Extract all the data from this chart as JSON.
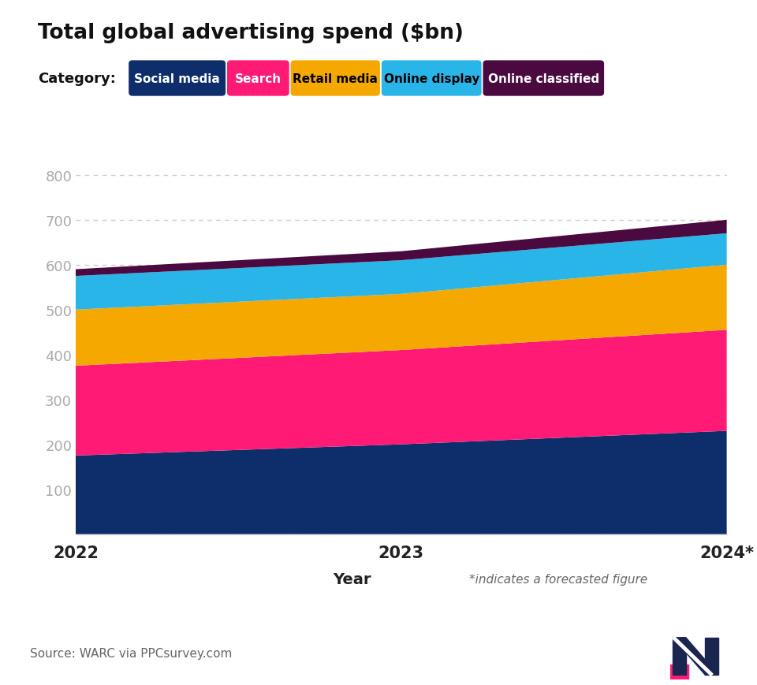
{
  "title": "Total global advertising spend ($bn)",
  "xlabel": "Year",
  "footnote": "*indicates a forecasted figure",
  "source": "Source: WARC via PPCsurvey.com",
  "years": [
    2022,
    2023,
    2024
  ],
  "xtick_labels": [
    "2022",
    "2023",
    "2024*"
  ],
  "yticks": [
    0,
    100,
    200,
    300,
    400,
    500,
    600,
    700,
    800
  ],
  "ylim": [
    0,
    840
  ],
  "categories": [
    "Social media",
    "Search",
    "Retail media",
    "Online display",
    "Online classified"
  ],
  "colors": [
    "#0d2d6b",
    "#ff1a75",
    "#f5a800",
    "#29b5e8",
    "#4a0a40"
  ],
  "label_colors": [
    "#ffffff",
    "#ffffff",
    "#000000",
    "#000000",
    "#ffffff"
  ],
  "values": {
    "Social media": [
      175,
      200,
      230
    ],
    "Search": [
      200,
      210,
      225
    ],
    "Retail media": [
      125,
      125,
      145
    ],
    "Online display": [
      75,
      75,
      70
    ],
    "Online classified": [
      15,
      20,
      30
    ]
  },
  "title_underline_color": "#ff1a75",
  "background_color": "#ffffff",
  "footer_bg_color": "#eceef4"
}
